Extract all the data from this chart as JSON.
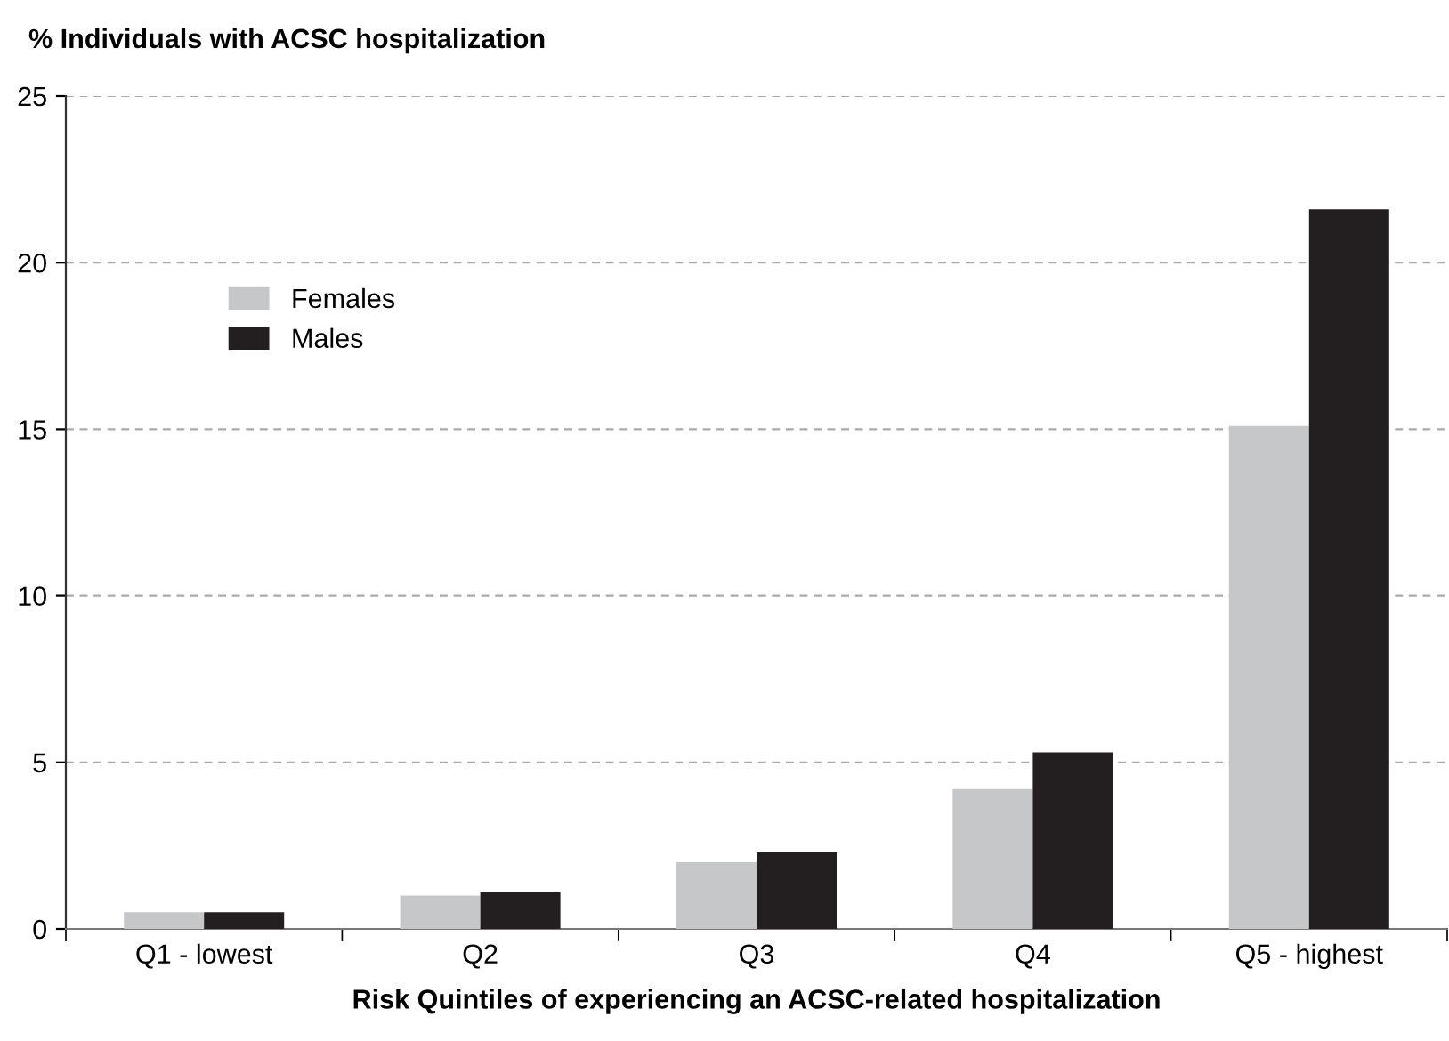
{
  "chart_data": {
    "type": "bar",
    "ylabel": "% Individuals with ACSC hospitalization",
    "xlabel": "Risk Quintiles of experiencing an ACSC-related hospitalization",
    "categories": [
      "Q1 - lowest",
      "Q2",
      "Q3",
      "Q4",
      "Q5 - highest"
    ],
    "series": [
      {
        "name": "Females",
        "color": "#c6c7c9",
        "values": [
          0.5,
          1.0,
          2.0,
          4.2,
          15.1
        ]
      },
      {
        "name": "Males",
        "color": "#231f20",
        "values": [
          0.5,
          1.1,
          2.3,
          5.3,
          21.6
        ]
      }
    ],
    "ylim": [
      0,
      25
    ],
    "yticks": [
      0,
      5,
      10,
      15,
      20,
      25
    ],
    "grid": "y",
    "legend": "top left"
  }
}
